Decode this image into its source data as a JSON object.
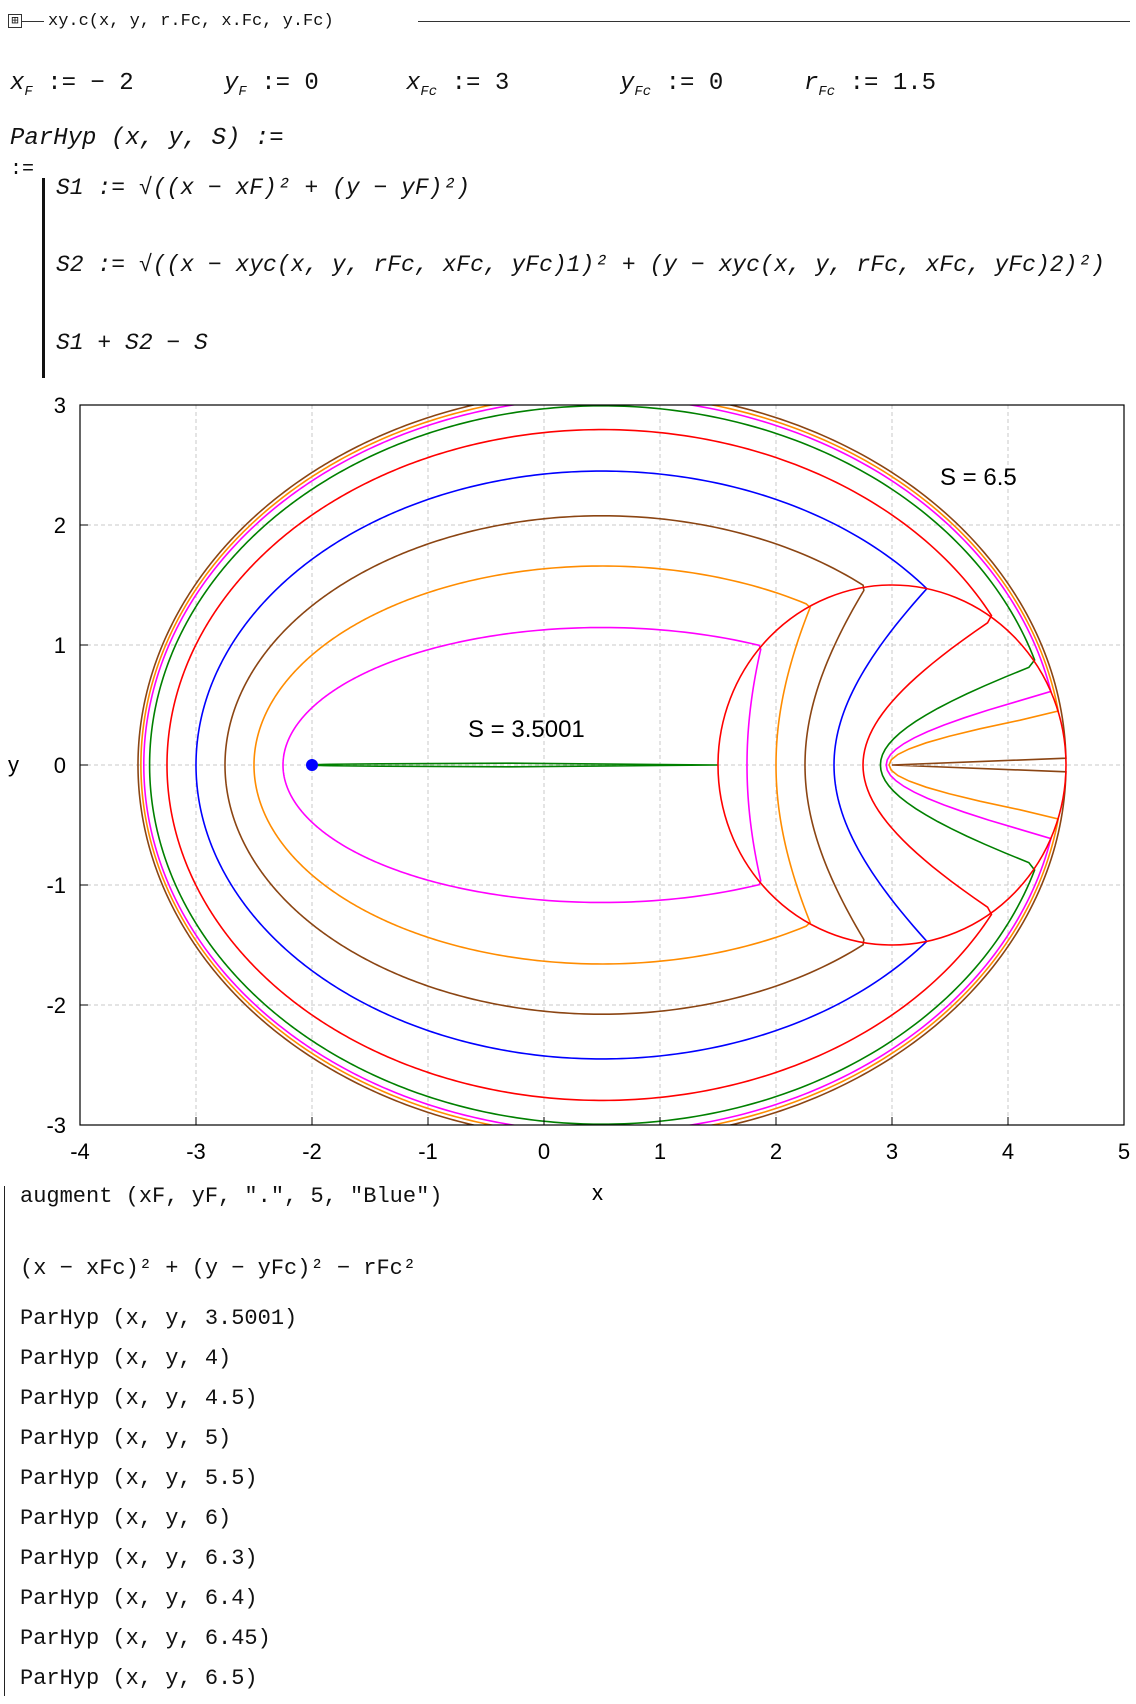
{
  "region": {
    "label": "xy.c(x, y, r.Fc, x.Fc, y.Fc)",
    "expand_glyph": "⊞"
  },
  "definitions": [
    {
      "var": "x",
      "sub": "F",
      "value": "− 2"
    },
    {
      "var": "y",
      "sub": "F",
      "value": "0"
    },
    {
      "var": "x",
      "sub": "Fc",
      "value": "3"
    },
    {
      "var": "y",
      "sub": "Fc",
      "value": "0"
    },
    {
      "var": "r",
      "sub": "Fc",
      "value": "1.5"
    }
  ],
  "function_def": {
    "header": "ParHyp (x, y, S) :=",
    "assign": ":="
  },
  "program": {
    "line1": "S1 := √((x − xF)² + (y − yF)²)",
    "line2": "S2 := √((x − xyc(x, y, rFc, xFc, yFc)1)² + (y − xyc(x, y, rFc, xFc, yFc)2)²)",
    "line3": "S1 + S2 − S"
  },
  "chart_data": {
    "type": "line",
    "xlabel": "x",
    "ylabel": "y",
    "xlim": [
      -4,
      5
    ],
    "ylim": [
      -3,
      3
    ],
    "x_ticks": [
      "-4",
      "-3",
      "-2",
      "-1",
      "0",
      "1",
      "2",
      "3",
      "4",
      "5"
    ],
    "y_ticks": [
      "3",
      "2",
      "1",
      "0",
      "-1",
      "-2",
      "-3"
    ],
    "grid": true,
    "annotations": [
      {
        "text": "S = 6.5"
      },
      {
        "text": "S = 3.5001"
      }
    ],
    "focus_point": {
      "x": -2,
      "y": 0,
      "color": "#0000ff"
    },
    "circle": {
      "cx": 3,
      "cy": 0,
      "r": 1.5,
      "color": "#ff0000"
    },
    "series": [
      {
        "S": 3.5001,
        "color": "#008000"
      },
      {
        "S": 4,
        "color": "#ff00ff"
      },
      {
        "S": 4.5,
        "color": "#ff8c00"
      },
      {
        "S": 5,
        "color": "#8b4513"
      },
      {
        "S": 5.5,
        "color": "#0000ff"
      },
      {
        "S": 6,
        "color": "#ff0000"
      },
      {
        "S": 6.3,
        "color": "#008000"
      },
      {
        "S": 6.4,
        "color": "#ff00ff"
      },
      {
        "S": 6.45,
        "color": "#ff8c00"
      },
      {
        "S": 6.5,
        "color": "#8b4513"
      }
    ]
  },
  "plot_exprs": [
    "augment (xF, yF, \".\", 5, \"Blue\")",
    "(x − xFc)² + (y − yFc)² − rFc²",
    "ParHyp (x, y, 3.5001)",
    "ParHyp (x, y, 4)",
    "ParHyp (x, y, 4.5)",
    "ParHyp (x, y, 5)",
    "ParHyp (x, y, 5.5)",
    "ParHyp (x, y, 6)",
    "ParHyp (x, y, 6.3)",
    "ParHyp (x, y, 6.4)",
    "ParHyp (x, y, 6.45)",
    "ParHyp (x, y, 6.5)"
  ]
}
